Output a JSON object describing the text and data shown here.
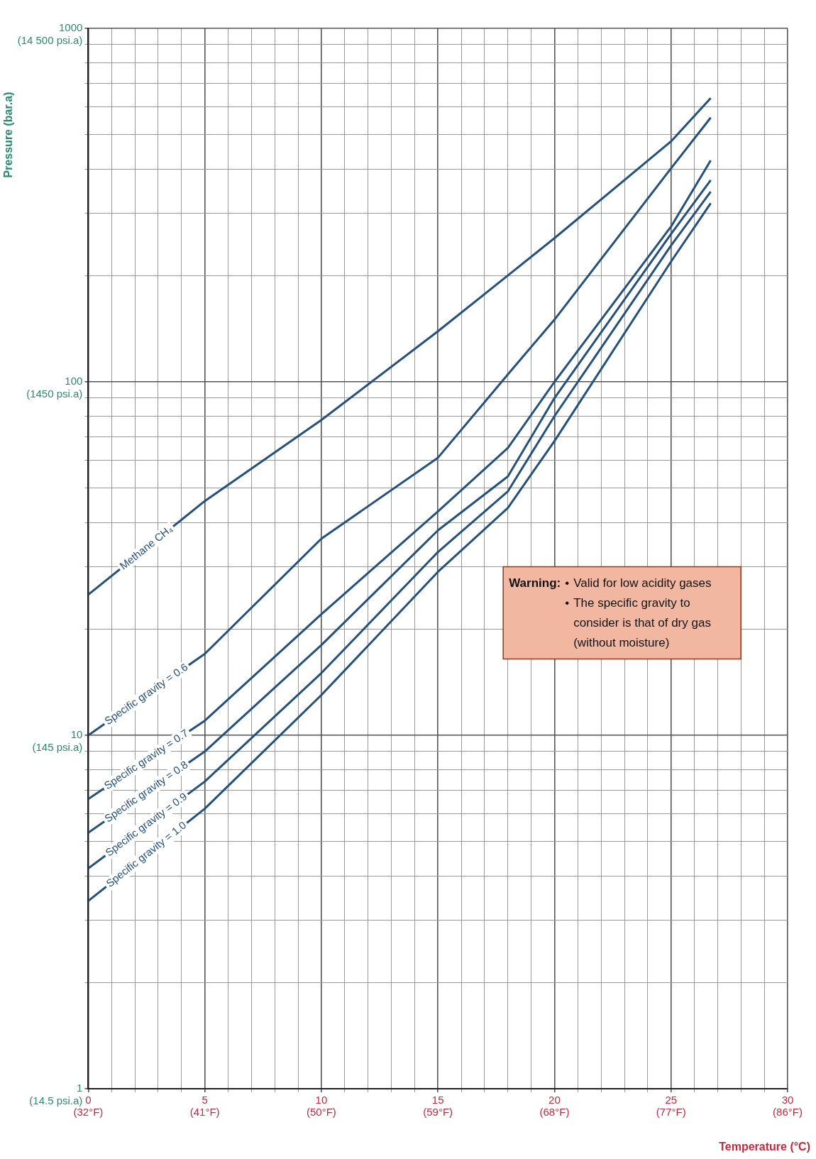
{
  "chart_data": {
    "type": "line",
    "xlabel": "Temperature (°C)",
    "ylabel": "Pressure (bar.a)",
    "xlim": [
      0,
      30
    ],
    "ylim": [
      1,
      1000
    ],
    "log": "y",
    "grid": true,
    "legend": false,
    "marker": "none",
    "line_style": "solid",
    "xticks": [
      0,
      {
        "value": 1,
        "label": null
      },
      {
        "value": 2,
        "label": null
      },
      {
        "value": 3,
        "label": null
      },
      {
        "value": 4,
        "label": null
      },
      5,
      {
        "value": 6,
        "label": null
      },
      {
        "value": 7,
        "label": null
      },
      {
        "value": 8,
        "label": null
      },
      {
        "value": 9,
        "label": null
      },
      10,
      {
        "value": 11,
        "label": null
      },
      {
        "value": 12,
        "label": null
      },
      {
        "value": 13,
        "label": null
      },
      {
        "value": 14,
        "label": null
      },
      15,
      {
        "value": 16,
        "label": null
      },
      {
        "value": 17,
        "label": null
      },
      {
        "value": 18,
        "label": null
      },
      {
        "value": 19,
        "label": null
      },
      20,
      {
        "value": 21,
        "label": null
      },
      {
        "value": 22,
        "label": null
      },
      {
        "value": 23,
        "label": null
      },
      {
        "value": 24,
        "label": null
      },
      25,
      {
        "value": 26,
        "label": null
      },
      {
        "value": 27,
        "label": null
      },
      {
        "value": 28,
        "label": null
      },
      {
        "value": 29,
        "label": null
      },
      30
    ],
    "yticks": [
      1,
      {
        "value": 2,
        "label": null
      },
      {
        "value": 3,
        "label": null
      },
      {
        "value": 4,
        "label": null
      },
      {
        "value": 5,
        "label": null
      },
      {
        "value": 6,
        "label": null
      },
      {
        "value": 7,
        "label": null
      },
      {
        "value": 8,
        "label": null
      },
      {
        "value": 9,
        "label": null
      },
      10,
      {
        "value": 20,
        "label": null
      },
      {
        "value": 30,
        "label": null
      },
      {
        "value": 40,
        "label": null
      },
      {
        "value": 50,
        "label": null
      },
      {
        "value": 60,
        "label": null
      },
      {
        "value": 70,
        "label": null
      },
      {
        "value": 80,
        "label": null
      },
      {
        "value": 90,
        "label": null
      },
      100,
      {
        "value": 200,
        "label": null
      },
      {
        "value": 300,
        "label": null
      },
      {
        "value": 400,
        "label": null
      },
      {
        "value": 500,
        "label": null
      },
      {
        "value": 600,
        "label": null
      },
      {
        "value": 700,
        "label": null
      },
      {
        "value": 800,
        "label": null
      },
      {
        "value": 900,
        "label": null
      },
      1000
    ],
    "x": [
      0,
      5,
      10,
      15,
      18,
      20,
      25,
      26.7
    ],
    "series": [
      {
        "name": "Methane CH₄",
        "color": "#24507e",
        "values": [
          25,
          46,
          78,
          139,
          200,
          255,
          479,
          635
        ]
      },
      {
        "name": "Specific gravity = 0.6",
        "color": "#24507e",
        "values": [
          10,
          17,
          36,
          61,
          105,
          150,
          402,
          559
        ]
      },
      {
        "name": "Specific gravity = 0.7",
        "color": "#24507e",
        "values": [
          6.6,
          11,
          22,
          43,
          65,
          100,
          275,
          423
        ]
      },
      {
        "name": "Specific gravity = 0.8",
        "color": "#24507e",
        "values": [
          5.3,
          9,
          18,
          38,
          54,
          90,
          262,
          372
        ]
      },
      {
        "name": "Specific gravity = 0.9",
        "color": "#24507e",
        "values": [
          4.2,
          7.4,
          15,
          33,
          49,
          80,
          243,
          345
        ]
      },
      {
        "name": "Specific gravity = 1.0",
        "color": "#24507e",
        "values": [
          3.4,
          6.2,
          13,
          29,
          44,
          68,
          219,
          320
        ]
      }
    ],
    "annotations": [
      "Warning: • Valid for low acidity gases • The specific gravity to consider is that of dry gas (without moisture)",
      "(32°F)",
      "(41°F)",
      "(50°F)",
      "(59°F)",
      "(68°F)",
      "(77°F)",
      "(86°F)",
      "(14.5 psi.a)",
      "(145 psi.a)",
      "(1450 psi.a)",
      "(14 500 psi.a)"
    ]
  }
}
